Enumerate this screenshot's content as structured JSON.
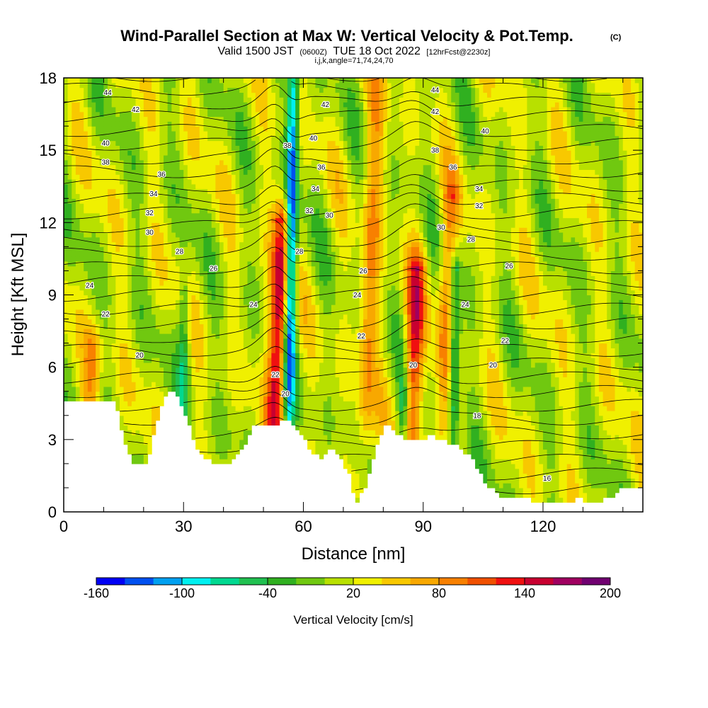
{
  "title": "Wind-Parallel Section at Max W: Vertical Velocity & Pot.Temp.",
  "title_mark": "(C)",
  "subtitle": {
    "valid": "Valid 1500 JST",
    "utc": "(0600Z)",
    "date": "TUE 18 Oct 2022",
    "fcst": "[12hrFcst@2230z]"
  },
  "indices": "i,j,k,angle=71,74,24,70",
  "chart_data": {
    "type": "heatmap",
    "xlabel": "Distance [nm]",
    "ylabel": "Height [Kft MSL]",
    "xlim": [
      0,
      145
    ],
    "ylim": [
      0,
      18
    ],
    "x_ticks": [
      "0",
      "30",
      "60",
      "90",
      "120"
    ],
    "y_ticks": [
      "0",
      "3",
      "6",
      "9",
      "12",
      "15",
      "18"
    ],
    "colorbar": {
      "title": "Vertical Velocity [cm/s]",
      "range": [
        -160,
        200
      ],
      "step": 20,
      "tick_labels": [
        "-160",
        "-100",
        "-40",
        "20",
        "80",
        "140",
        "200"
      ],
      "colors": [
        "#0000f5",
        "#0050f0",
        "#00a0f0",
        "#00f0f0",
        "#00d890",
        "#20c050",
        "#30b020",
        "#70c810",
        "#b8e000",
        "#f0f000",
        "#f8c800",
        "#f8a800",
        "#f88000",
        "#f05000",
        "#f01010",
        "#c80030",
        "#a00060",
        "#700070"
      ]
    },
    "updrafts": [
      {
        "x": 53,
        "top": 12,
        "peak_cm_s": 150
      },
      {
        "x": 87,
        "top": 10,
        "peak_cm_s": 120
      },
      {
        "x": 95,
        "top": 13,
        "peak_cm_s": 80
      },
      {
        "x": 75,
        "top": 18,
        "peak_cm_s": 70
      },
      {
        "x": 7,
        "top": 7,
        "peak_cm_s": 60
      }
    ],
    "downdrafts": [
      {
        "x": 56.5,
        "top": 18,
        "peak_cm_s": -160
      },
      {
        "x": 97.5,
        "top": 10,
        "peak_cm_s": -100
      },
      {
        "x": 85,
        "top": 5,
        "peak_cm_s": -80
      },
      {
        "x": 30,
        "top": 9,
        "peak_cm_s": -60
      }
    ],
    "terrain": [
      [
        0,
        4.6
      ],
      [
        13,
        4.6
      ],
      [
        15,
        3.1
      ],
      [
        17,
        2.1
      ],
      [
        21,
        2.1
      ],
      [
        23,
        3.5
      ],
      [
        25,
        4.8
      ],
      [
        28,
        5.1
      ],
      [
        31,
        3.8
      ],
      [
        34,
        2.4
      ],
      [
        37,
        2.1
      ],
      [
        42,
        2.1
      ],
      [
        45,
        2.7
      ],
      [
        47,
        3.5
      ],
      [
        50,
        3.6
      ],
      [
        53,
        3.6
      ],
      [
        56,
        3.9
      ],
      [
        59,
        3.4
      ],
      [
        62,
        2.5
      ],
      [
        65,
        2.2
      ],
      [
        67,
        2.7
      ],
      [
        69,
        2.3
      ],
      [
        72,
        1.5
      ],
      [
        73,
        0.3
      ],
      [
        74,
        0.6
      ],
      [
        76,
        1.2
      ],
      [
        78,
        2.5
      ],
      [
        81,
        3.8
      ],
      [
        84,
        3.2
      ],
      [
        87,
        3.0
      ],
      [
        90,
        3.0
      ],
      [
        92,
        3.3
      ],
      [
        94,
        3.0
      ],
      [
        96,
        2.9
      ],
      [
        99,
        2.7
      ],
      [
        102,
        2.3
      ],
      [
        105,
        1.4
      ],
      [
        108,
        0.8
      ],
      [
        111,
        0.6
      ],
      [
        116,
        0.6
      ],
      [
        118,
        0.4
      ],
      [
        126,
        0.4
      ],
      [
        129,
        0.6
      ],
      [
        132,
        0.4
      ],
      [
        137,
        0.6
      ],
      [
        140,
        1.0
      ],
      [
        145,
        1.0
      ]
    ],
    "theta_contour_labels": [
      {
        "x": 11,
        "y": 17.4,
        "label": "44"
      },
      {
        "x": 18,
        "y": 16.7,
        "label": "42"
      },
      {
        "x": 10.5,
        "y": 15.3,
        "label": "40"
      },
      {
        "x": 10.5,
        "y": 14.5,
        "label": "38"
      },
      {
        "x": 24.5,
        "y": 14.0,
        "label": "36"
      },
      {
        "x": 22.5,
        "y": 13.2,
        "label": "34"
      },
      {
        "x": 21.5,
        "y": 12.4,
        "label": "32"
      },
      {
        "x": 21.5,
        "y": 11.6,
        "label": "30"
      },
      {
        "x": 29,
        "y": 10.8,
        "label": "28"
      },
      {
        "x": 37.5,
        "y": 10.1,
        "label": "26"
      },
      {
        "x": 6.5,
        "y": 9.4,
        "label": "24"
      },
      {
        "x": 10.5,
        "y": 8.2,
        "label": "22"
      },
      {
        "x": 19,
        "y": 6.5,
        "label": "20"
      },
      {
        "x": 47.5,
        "y": 8.6,
        "label": "24"
      },
      {
        "x": 56,
        "y": 15.2,
        "label": "38"
      },
      {
        "x": 65.5,
        "y": 16.9,
        "label": "42"
      },
      {
        "x": 62.5,
        "y": 15.5,
        "label": "40"
      },
      {
        "x": 64.5,
        "y": 14.3,
        "label": "36"
      },
      {
        "x": 63,
        "y": 13.4,
        "label": "34"
      },
      {
        "x": 61.5,
        "y": 12.5,
        "label": "32"
      },
      {
        "x": 66.5,
        "y": 12.3,
        "label": "30"
      },
      {
        "x": 59,
        "y": 10.8,
        "label": "28"
      },
      {
        "x": 53,
        "y": 5.7,
        "label": "22"
      },
      {
        "x": 55.5,
        "y": 4.9,
        "label": "20"
      },
      {
        "x": 75,
        "y": 10.0,
        "label": "26"
      },
      {
        "x": 73.5,
        "y": 9.0,
        "label": "24"
      },
      {
        "x": 74.5,
        "y": 7.3,
        "label": "22"
      },
      {
        "x": 87.5,
        "y": 6.1,
        "label": "20"
      },
      {
        "x": 94.5,
        "y": 11.8,
        "label": "30"
      },
      {
        "x": 93,
        "y": 17.5,
        "label": "44"
      },
      {
        "x": 93,
        "y": 16.6,
        "label": "42"
      },
      {
        "x": 105.5,
        "y": 15.8,
        "label": "40"
      },
      {
        "x": 93,
        "y": 15.0,
        "label": "38"
      },
      {
        "x": 97.5,
        "y": 14.3,
        "label": "36"
      },
      {
        "x": 104,
        "y": 13.4,
        "label": "34"
      },
      {
        "x": 104,
        "y": 12.7,
        "label": "32"
      },
      {
        "x": 102,
        "y": 11.3,
        "label": "28"
      },
      {
        "x": 111.5,
        "y": 10.2,
        "label": "26"
      },
      {
        "x": 100.5,
        "y": 8.6,
        "label": "24"
      },
      {
        "x": 110.5,
        "y": 7.1,
        "label": "22"
      },
      {
        "x": 107.5,
        "y": 6.1,
        "label": "20"
      },
      {
        "x": 103.5,
        "y": 4.0,
        "label": "18"
      },
      {
        "x": 121,
        "y": 1.4,
        "label": "16"
      }
    ]
  }
}
